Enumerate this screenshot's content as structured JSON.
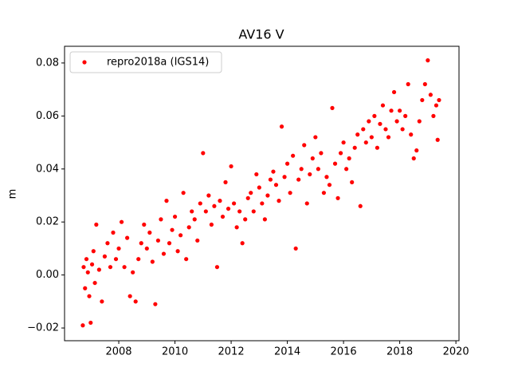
{
  "chart_data": {
    "type": "scatter",
    "title": "AV16 V",
    "ylabel": "m",
    "xlim": [
      2006.07,
      2020.11
    ],
    "ylim": [
      -0.0248,
      0.0863
    ],
    "xticks": [
      2008,
      2010,
      2012,
      2014,
      2016,
      2018,
      2020
    ],
    "yticks": [
      {
        "value": -0.02,
        "label": "−0.02"
      },
      {
        "value": 0,
        "label": "0.00"
      },
      0.02,
      0.04,
      0.06,
      0.08
    ],
    "legend": "upper left",
    "series": [
      {
        "name": "repro2018a (IGS14)",
        "color": "#ff0000",
        "x": [
          2006.72,
          2006.75,
          2006.8,
          2006.85,
          2006.9,
          2006.95,
          2007.0,
          2007.05,
          2007.1,
          2007.15,
          2007.2,
          2007.3,
          2007.4,
          2007.5,
          2007.6,
          2007.7,
          2007.8,
          2007.9,
          2008.0,
          2008.1,
          2008.2,
          2008.3,
          2008.4,
          2008.5,
          2008.6,
          2008.7,
          2008.8,
          2008.9,
          2009.0,
          2009.1,
          2009.2,
          2009.3,
          2009.4,
          2009.5,
          2009.6,
          2009.7,
          2009.8,
          2009.9,
          2010.0,
          2010.1,
          2010.2,
          2010.3,
          2010.4,
          2010.5,
          2010.6,
          2010.7,
          2010.8,
          2010.9,
          2011.0,
          2011.1,
          2011.2,
          2011.3,
          2011.4,
          2011.5,
          2011.6,
          2011.7,
          2011.8,
          2011.9,
          2012.0,
          2012.1,
          2012.2,
          2012.3,
          2012.4,
          2012.5,
          2012.6,
          2012.7,
          2012.8,
          2012.9,
          2013.0,
          2013.1,
          2013.2,
          2013.3,
          2013.4,
          2013.5,
          2013.6,
          2013.7,
          2013.8,
          2013.9,
          2014.0,
          2014.1,
          2014.2,
          2014.3,
          2014.4,
          2014.5,
          2014.6,
          2014.7,
          2014.8,
          2014.9,
          2015.0,
          2015.1,
          2015.2,
          2015.3,
          2015.4,
          2015.5,
          2015.6,
          2015.7,
          2015.8,
          2015.9,
          2016.0,
          2016.1,
          2016.2,
          2016.3,
          2016.4,
          2016.5,
          2016.6,
          2016.7,
          2016.8,
          2016.9,
          2017.0,
          2017.1,
          2017.2,
          2017.3,
          2017.4,
          2017.5,
          2017.6,
          2017.7,
          2017.8,
          2017.9,
          2018.0,
          2018.1,
          2018.2,
          2018.3,
          2018.4,
          2018.5,
          2018.6,
          2018.7,
          2018.8,
          2018.9,
          2019.0,
          2019.1,
          2019.2,
          2019.3,
          2019.35,
          2019.4
        ],
        "values": [
          -0.019,
          0.003,
          -0.005,
          0.006,
          0.001,
          -0.008,
          -0.018,
          0.004,
          0.009,
          -0.003,
          0.019,
          0.002,
          -0.01,
          0.007,
          0.012,
          0.003,
          0.016,
          0.006,
          0.01,
          0.02,
          0.003,
          0.014,
          -0.008,
          0.001,
          -0.01,
          0.006,
          0.012,
          0.019,
          0.01,
          0.016,
          0.005,
          -0.011,
          0.013,
          0.021,
          0.008,
          0.028,
          0.012,
          0.017,
          0.022,
          0.009,
          0.015,
          0.031,
          0.006,
          0.018,
          0.024,
          0.021,
          0.013,
          0.027,
          0.046,
          0.024,
          0.03,
          0.019,
          0.026,
          0.003,
          0.028,
          0.022,
          0.035,
          0.025,
          0.041,
          0.027,
          0.018,
          0.024,
          0.012,
          0.021,
          0.029,
          0.031,
          0.024,
          0.038,
          0.033,
          0.027,
          0.021,
          0.03,
          0.036,
          0.039,
          0.034,
          0.028,
          0.056,
          0.037,
          0.042,
          0.031,
          0.045,
          0.01,
          0.036,
          0.04,
          0.049,
          0.027,
          0.038,
          0.044,
          0.052,
          0.04,
          0.046,
          0.031,
          0.037,
          0.034,
          0.063,
          0.042,
          0.029,
          0.046,
          0.05,
          0.04,
          0.044,
          0.035,
          0.048,
          0.053,
          0.026,
          0.055,
          0.05,
          0.058,
          0.052,
          0.06,
          0.048,
          0.057,
          0.064,
          0.055,
          0.052,
          0.062,
          0.069,
          0.058,
          0.062,
          0.055,
          0.06,
          0.072,
          0.053,
          0.044,
          0.047,
          0.058,
          0.066,
          0.072,
          0.081,
          0.068,
          0.06,
          0.064,
          0.051,
          0.066
        ]
      }
    ]
  }
}
